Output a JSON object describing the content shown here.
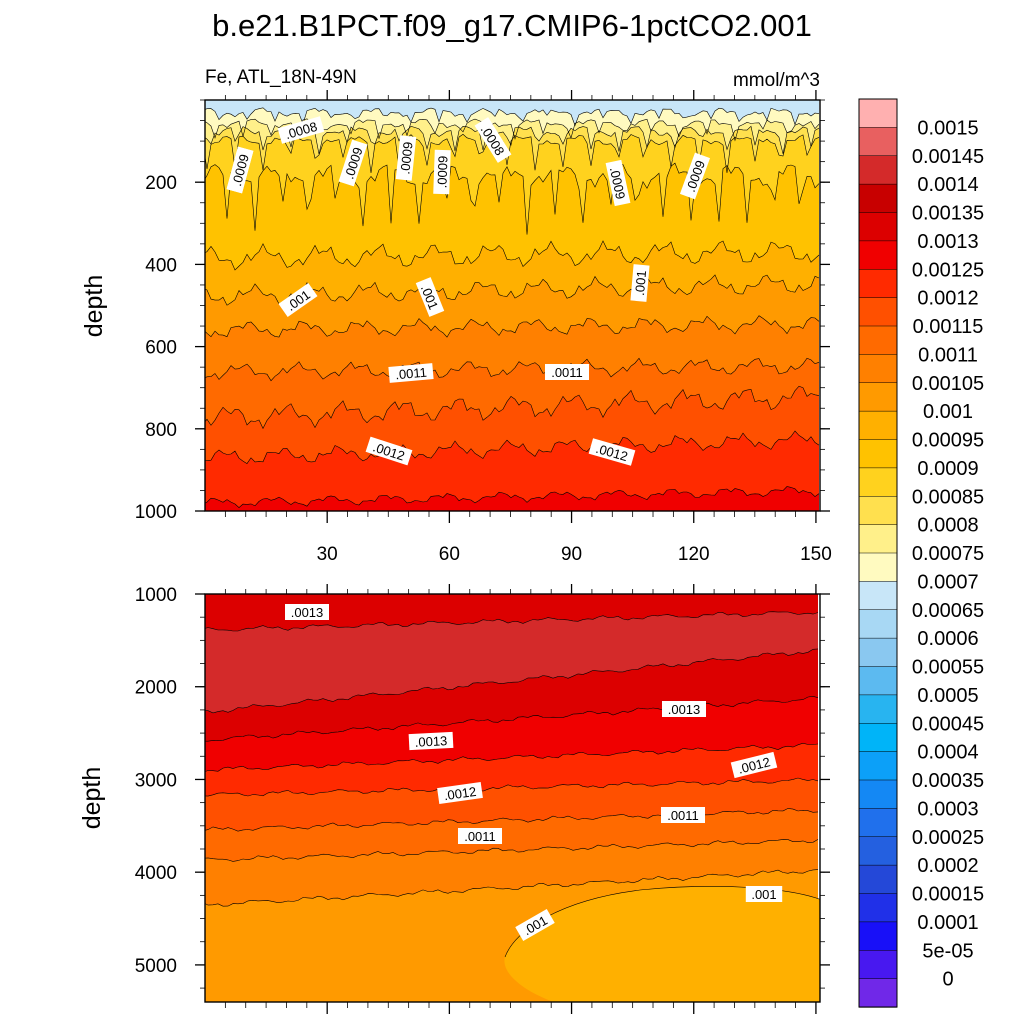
{
  "chart_data": {
    "type": "heatmap",
    "title": "b.e21.B1PCT.f09_g17.CMIP6-1pctCO2.001",
    "variable": "Fe, ATL_18N-49N",
    "units": "mmol/m^3",
    "colorbar": {
      "labels": [
        "0.0015",
        "0.00145",
        "0.0014",
        "0.00135",
        "0.0013",
        "0.00125",
        "0.0012",
        "0.00115",
        "0.0011",
        "0.00105",
        "0.001",
        "0.00095",
        "0.0009",
        "0.00085",
        "0.0008",
        "0.00075",
        "0.0007",
        "0.00065",
        "0.0006",
        "0.00055",
        "0.0005",
        "0.00045",
        "0.0004",
        "0.00035",
        "0.0003",
        "0.00025",
        "0.0002",
        "0.00015",
        "0.0001",
        "5e-05",
        "0"
      ],
      "colors": [
        "#ffb0b0",
        "#e86060",
        "#d42a2a",
        "#c80000",
        "#dc0000",
        "#f00000",
        "#ff2a00",
        "#ff5000",
        "#ff6a00",
        "#ff8000",
        "#ff9a00",
        "#ffb000",
        "#ffc200",
        "#ffd21e",
        "#ffe04e",
        "#fff08a",
        "#fffac0",
        "#c8e6f8",
        "#a8d8f4",
        "#8ac8f0",
        "#5cbaf0",
        "#28b4f0",
        "#00b4f8",
        "#0ca0f8",
        "#1488f4",
        "#2070ec",
        "#2460e0",
        "#2448d8",
        "#2030e8",
        "#1810f8",
        "#4818f0",
        "#7028e8"
      ]
    },
    "panels": [
      {
        "name": "upper",
        "ylabel": "depth",
        "ylim": [
          0,
          1000
        ],
        "yticks": [
          "200",
          "400",
          "600",
          "800",
          "1000"
        ],
        "xlim": [
          0,
          151
        ],
        "xticks": [
          "30",
          "60",
          "90",
          "120",
          "150"
        ],
        "contour_labels": [
          ".0008",
          ".0008",
          ".0008",
          ".0009",
          ".0009",
          ".0009",
          ".0009",
          ".0009",
          ".0009",
          ".001",
          ".001",
          ".001",
          ".0011",
          ".0011",
          ".0012",
          ".0012"
        ]
      },
      {
        "name": "lower",
        "ylabel": "depth",
        "ylim": [
          1000,
          5400
        ],
        "yticks": [
          "1000",
          "2000",
          "3000",
          "4000",
          "5000"
        ],
        "xlim": [
          0,
          151
        ],
        "contour_labels": [
          ".0013",
          ".0013",
          ".0013",
          ".0012",
          ".0012",
          ".0011",
          ".0011",
          ".001",
          ".001"
        ]
      }
    ]
  }
}
